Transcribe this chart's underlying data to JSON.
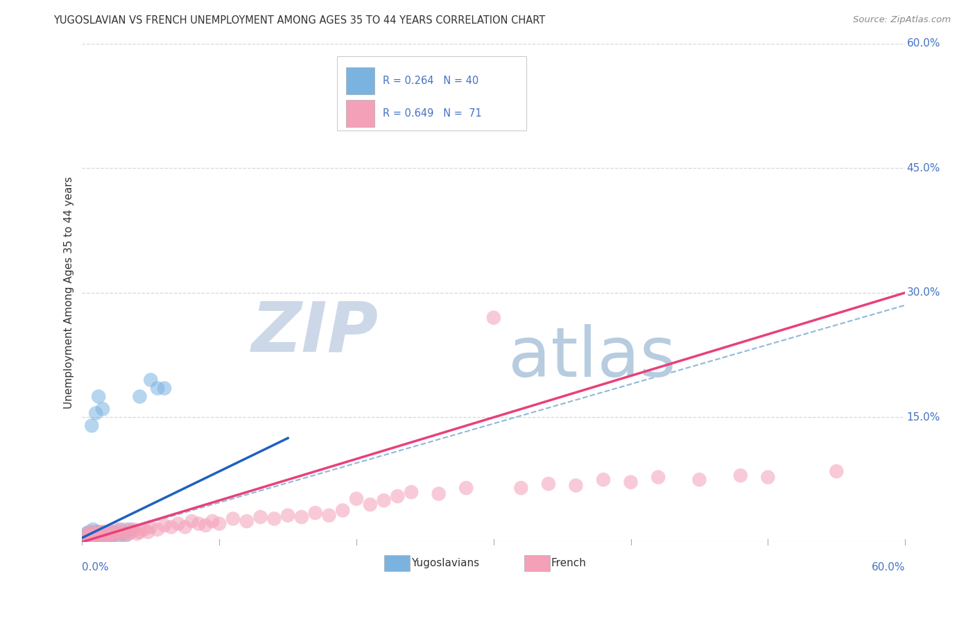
{
  "title": "YUGOSLAVIAN VS FRENCH UNEMPLOYMENT AMONG AGES 35 TO 44 YEARS CORRELATION CHART",
  "source": "Source: ZipAtlas.com",
  "ylabel": "Unemployment Among Ages 35 to 44 years",
  "xlim": [
    0,
    0.6
  ],
  "ylim": [
    0,
    0.6
  ],
  "ytick_labels": [
    "15.0%",
    "30.0%",
    "45.0%",
    "60.0%"
  ],
  "ytick_values": [
    0.15,
    0.3,
    0.45,
    0.6
  ],
  "yug_color": "#7ab3e0",
  "french_color": "#f4a0b8",
  "yug_line_color": "#2060c0",
  "french_line_color": "#e8407a",
  "dashed_line_color": "#90b8d8",
  "watermark_zip_color": "#ccd8e8",
  "watermark_atlas_color": "#b8cce0",
  "background_color": "#ffffff",
  "tick_color": "#4472c4",
  "grid_color": "#d0d8e0",
  "yug_scatter": [
    [
      0.002,
      0.005
    ],
    [
      0.003,
      0.01
    ],
    [
      0.004,
      0.008
    ],
    [
      0.005,
      0.012
    ],
    [
      0.005,
      0.005
    ],
    [
      0.006,
      0.008
    ],
    [
      0.007,
      0.01
    ],
    [
      0.008,
      0.006
    ],
    [
      0.008,
      0.015
    ],
    [
      0.009,
      0.008
    ],
    [
      0.01,
      0.012
    ],
    [
      0.01,
      0.005
    ],
    [
      0.011,
      0.01
    ],
    [
      0.012,
      0.008
    ],
    [
      0.012,
      0.012
    ],
    [
      0.013,
      0.005
    ],
    [
      0.014,
      0.01
    ],
    [
      0.015,
      0.008
    ],
    [
      0.016,
      0.012
    ],
    [
      0.017,
      0.006
    ],
    [
      0.018,
      0.01
    ],
    [
      0.019,
      0.008
    ],
    [
      0.02,
      0.012
    ],
    [
      0.02,
      0.005
    ],
    [
      0.022,
      0.008
    ],
    [
      0.023,
      0.012
    ],
    [
      0.025,
      0.01
    ],
    [
      0.026,
      0.006
    ],
    [
      0.028,
      0.015
    ],
    [
      0.03,
      0.01
    ],
    [
      0.032,
      0.008
    ],
    [
      0.035,
      0.015
    ],
    [
      0.042,
      0.175
    ],
    [
      0.05,
      0.195
    ],
    [
      0.055,
      0.185
    ],
    [
      0.06,
      0.185
    ],
    [
      0.007,
      0.14
    ],
    [
      0.01,
      0.155
    ],
    [
      0.012,
      0.175
    ],
    [
      0.015,
      0.16
    ]
  ],
  "french_scatter": [
    [
      0.002,
      0.008
    ],
    [
      0.004,
      0.005
    ],
    [
      0.005,
      0.01
    ],
    [
      0.006,
      0.008
    ],
    [
      0.007,
      0.012
    ],
    [
      0.008,
      0.006
    ],
    [
      0.009,
      0.01
    ],
    [
      0.01,
      0.008
    ],
    [
      0.011,
      0.012
    ],
    [
      0.012,
      0.006
    ],
    [
      0.013,
      0.01
    ],
    [
      0.014,
      0.012
    ],
    [
      0.015,
      0.005
    ],
    [
      0.016,
      0.01
    ],
    [
      0.017,
      0.008
    ],
    [
      0.018,
      0.012
    ],
    [
      0.019,
      0.006
    ],
    [
      0.02,
      0.01
    ],
    [
      0.022,
      0.008
    ],
    [
      0.024,
      0.012
    ],
    [
      0.025,
      0.015
    ],
    [
      0.026,
      0.01
    ],
    [
      0.028,
      0.012
    ],
    [
      0.03,
      0.008
    ],
    [
      0.032,
      0.015
    ],
    [
      0.034,
      0.01
    ],
    [
      0.036,
      0.012
    ],
    [
      0.038,
      0.015
    ],
    [
      0.04,
      0.01
    ],
    [
      0.042,
      0.012
    ],
    [
      0.045,
      0.015
    ],
    [
      0.048,
      0.012
    ],
    [
      0.05,
      0.018
    ],
    [
      0.055,
      0.015
    ],
    [
      0.06,
      0.02
    ],
    [
      0.065,
      0.018
    ],
    [
      0.07,
      0.022
    ],
    [
      0.075,
      0.018
    ],
    [
      0.08,
      0.025
    ],
    [
      0.085,
      0.022
    ],
    [
      0.09,
      0.02
    ],
    [
      0.095,
      0.025
    ],
    [
      0.1,
      0.022
    ],
    [
      0.11,
      0.028
    ],
    [
      0.12,
      0.025
    ],
    [
      0.13,
      0.03
    ],
    [
      0.14,
      0.028
    ],
    [
      0.15,
      0.032
    ],
    [
      0.16,
      0.03
    ],
    [
      0.17,
      0.035
    ],
    [
      0.18,
      0.032
    ],
    [
      0.19,
      0.038
    ],
    [
      0.2,
      0.052
    ],
    [
      0.21,
      0.045
    ],
    [
      0.22,
      0.05
    ],
    [
      0.23,
      0.055
    ],
    [
      0.24,
      0.06
    ],
    [
      0.26,
      0.058
    ],
    [
      0.28,
      0.065
    ],
    [
      0.3,
      0.27
    ],
    [
      0.32,
      0.065
    ],
    [
      0.34,
      0.07
    ],
    [
      0.36,
      0.068
    ],
    [
      0.38,
      0.075
    ],
    [
      0.4,
      0.072
    ],
    [
      0.42,
      0.078
    ],
    [
      0.45,
      0.075
    ],
    [
      0.48,
      0.08
    ],
    [
      0.5,
      0.078
    ],
    [
      0.55,
      0.085
    ]
  ],
  "yug_trend": [
    0.0,
    0.12
  ],
  "french_trend_start": 0.0,
  "french_trend_end": 0.3,
  "dashed_trend_end": 0.29
}
